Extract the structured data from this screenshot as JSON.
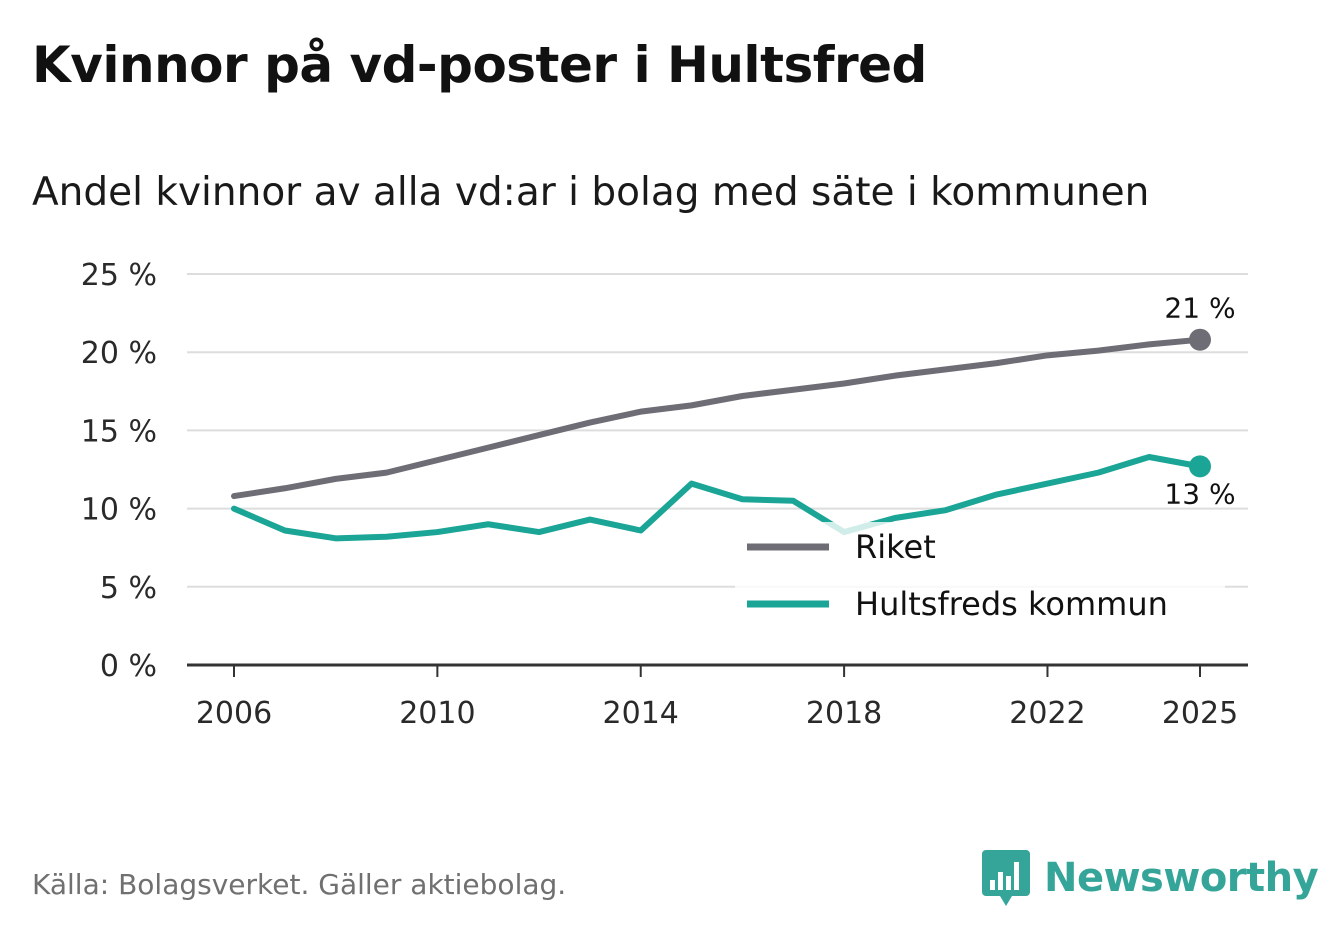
{
  "title": "Kvinnor på vd-poster i Hultsfred",
  "subtitle": "Andel kvinnor av alla vd:ar i bolag med säte i kommunen",
  "source": "Källa: Bolagsverket. Gäller aktiebolag.",
  "brand": {
    "name": "Newsworthy",
    "logo_icon": "bar-chart-badge-icon",
    "color": "#35a59a"
  },
  "chart_data": {
    "type": "line",
    "x": [
      2006,
      2007,
      2008,
      2009,
      2010,
      2011,
      2012,
      2013,
      2014,
      2015,
      2016,
      2017,
      2018,
      2019,
      2020,
      2021,
      2022,
      2023,
      2024,
      2025
    ],
    "series": [
      {
        "name": "Riket",
        "color": "#6e6d75",
        "values": [
          10.8,
          11.3,
          11.9,
          12.3,
          13.1,
          13.9,
          14.7,
          15.5,
          16.2,
          16.6,
          17.2,
          17.6,
          18.0,
          18.5,
          18.9,
          19.3,
          19.8,
          20.1,
          20.5,
          20.8
        ],
        "end_label": "21 %"
      },
      {
        "name": "Hultsfreds kommun",
        "color": "#1aa596",
        "values": [
          10.0,
          8.6,
          8.1,
          8.2,
          8.5,
          9.0,
          8.5,
          9.3,
          8.6,
          11.6,
          10.6,
          10.5,
          8.5,
          9.4,
          9.9,
          10.9,
          11.6,
          12.3,
          13.3,
          12.7
        ],
        "end_label": "13 %"
      }
    ],
    "ylim": [
      0,
      25
    ],
    "yticks": [
      0,
      5,
      10,
      15,
      20,
      25
    ],
    "ytick_labels": [
      "0 %",
      "5 %",
      "10 %",
      "15 %",
      "20 %",
      "25 %"
    ],
    "xticks": [
      2006,
      2010,
      2014,
      2018,
      2022,
      2025
    ],
    "xtick_labels": [
      "2006",
      "2010",
      "2014",
      "2018",
      "2022",
      "2025"
    ],
    "legend_position": "lower-right",
    "grid": true,
    "xlabel": "",
    "ylabel": ""
  }
}
